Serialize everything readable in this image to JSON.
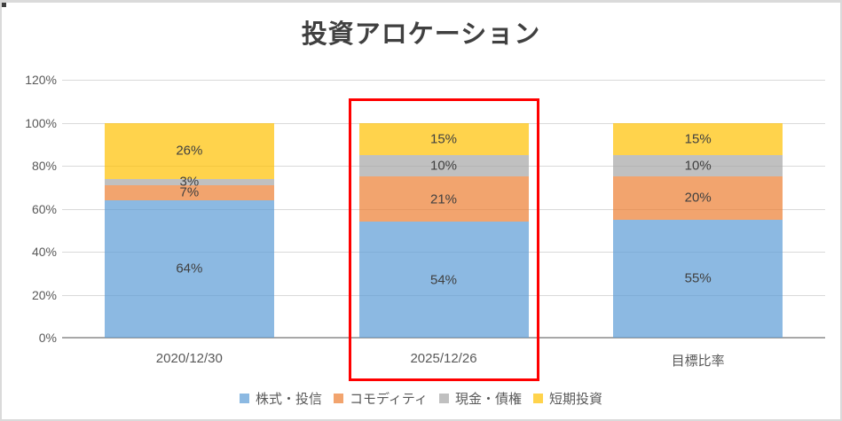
{
  "chart_data": {
    "type": "bar",
    "stacked": true,
    "title": "投資アロケーション",
    "categories": [
      "2020/12/30",
      "2025/12/26",
      "目標比率"
    ],
    "series": [
      {
        "name": "株式・投信",
        "color": "#5B9BD5",
        "opacity": 0.7,
        "values": [
          64,
          54,
          55
        ]
      },
      {
        "name": "コモディティ",
        "color": "#ED7D31",
        "opacity": 0.7,
        "values": [
          7,
          21,
          20
        ]
      },
      {
        "name": "現金・債権",
        "color": "#A5A5A5",
        "opacity": 0.7,
        "values": [
          3,
          10,
          10
        ]
      },
      {
        "name": "短期投資",
        "color": "#FFC000",
        "opacity": 0.7,
        "values": [
          26,
          15,
          15
        ]
      }
    ],
    "data_label_suffix": "%",
    "y_axis": {
      "min": 0,
      "max": 120,
      "grid": true,
      "ticks": [
        {
          "value": 0,
          "label": "0%"
        },
        {
          "value": 20,
          "label": "20%"
        },
        {
          "value": 40,
          "label": "40%"
        },
        {
          "value": 60,
          "label": "60%"
        },
        {
          "value": 80,
          "label": "80%"
        },
        {
          "value": 100,
          "label": "100%"
        },
        {
          "value": 120,
          "label": "120%"
        }
      ]
    },
    "legend": {
      "position": "bottom",
      "items": [
        "株式・投信",
        "コモディティ",
        "現金・債権",
        "短期投資"
      ]
    },
    "annotation": {
      "type": "highlight-box",
      "target_category": "2025/12/26",
      "border_color": "#FF0000"
    }
  },
  "colors": {
    "background": "#FFFFFF",
    "title_text": "#404040",
    "tick_label": "#595959",
    "category_label": "#595959",
    "data_label": "#404040",
    "gridline": "#D9D9D9",
    "axis_line": "#A8A8A8",
    "frame_border": "#DADADA",
    "corner_handle": "#3F3F3F"
  }
}
